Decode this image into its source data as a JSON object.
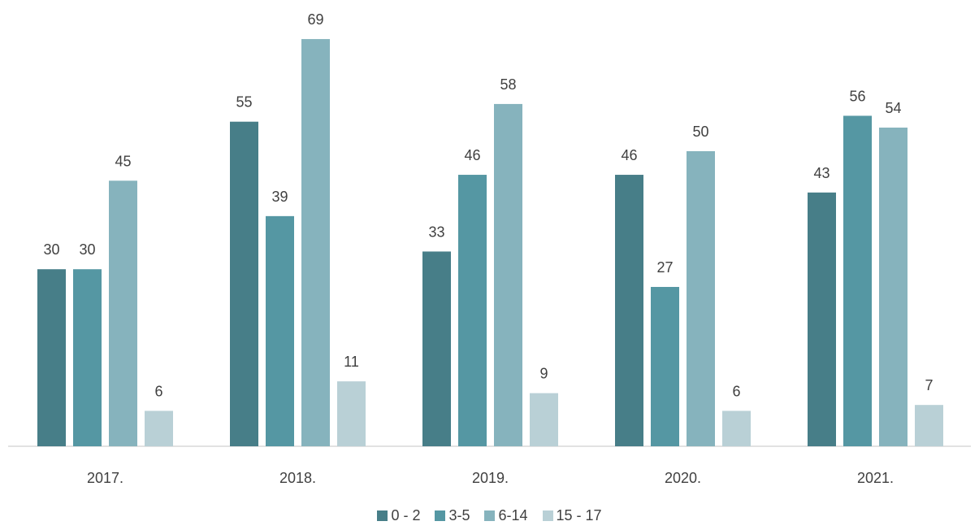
{
  "chart_data": {
    "type": "bar",
    "categories": [
      "2017.",
      "2018.",
      "2019.",
      "2020.",
      "2021."
    ],
    "series": [
      {
        "name": "0 - 2",
        "color": "#477e88",
        "values": [
          30,
          55,
          33,
          46,
          43
        ]
      },
      {
        "name": "3-5",
        "color": "#5597a3",
        "values": [
          30,
          39,
          46,
          27,
          56
        ]
      },
      {
        "name": "6-14",
        "color": "#86b3bd",
        "values": [
          45,
          69,
          58,
          50,
          54
        ]
      },
      {
        "name": "15 - 17",
        "color": "#b9d0d6",
        "values": [
          6,
          11,
          9,
          6,
          7
        ]
      }
    ],
    "legend": "bottom"
  }
}
